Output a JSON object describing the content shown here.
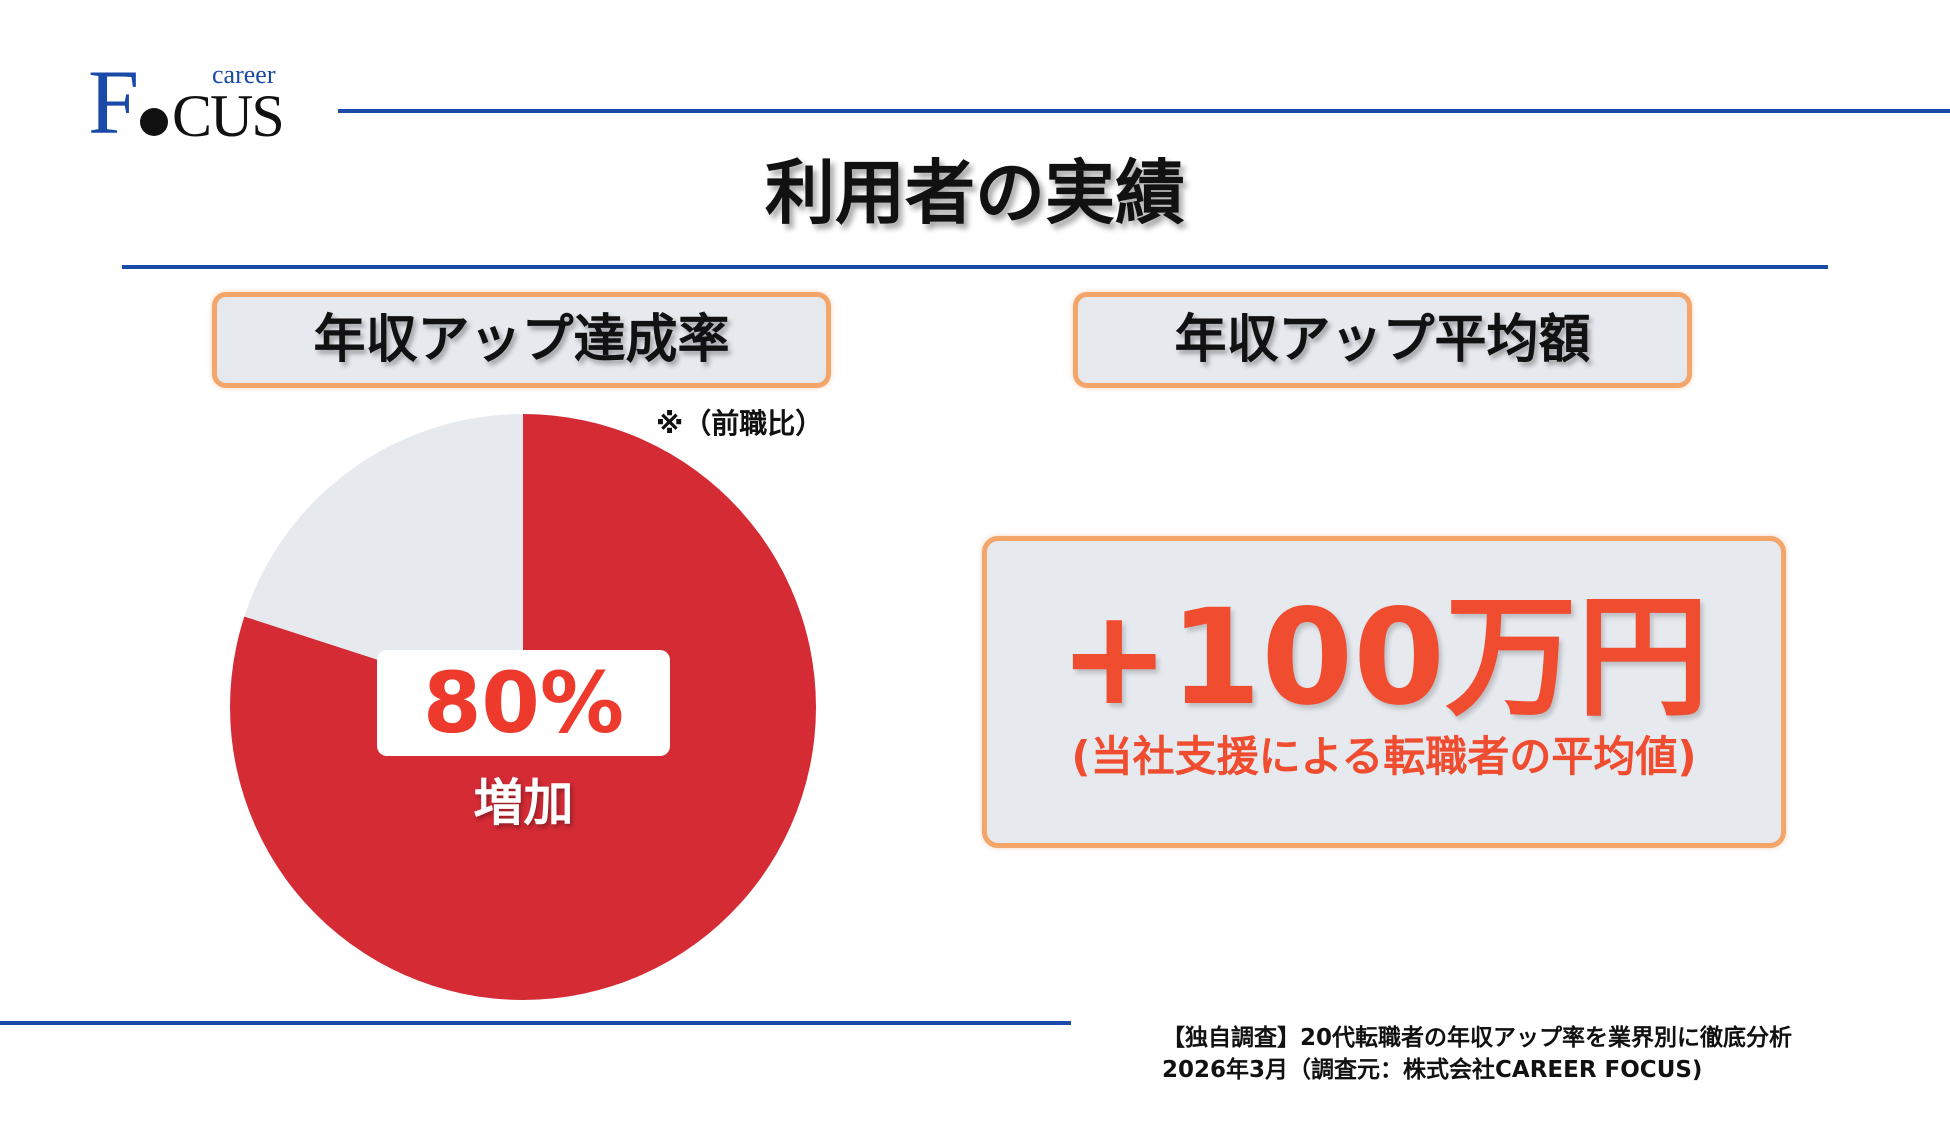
{
  "logo": {
    "f_letter": "F",
    "cus_letters": "CUS",
    "career_text": "career"
  },
  "title": "利用者の実績",
  "left_panel": {
    "header": "年収アップ達成率",
    "note": "※（前職比）",
    "percent_text": "80%",
    "percent_label": "増加"
  },
  "right_panel": {
    "header": "年収アップ平均額",
    "amount": "+100万円",
    "amount_note": "(当社支援による転職者の平均値)"
  },
  "source": {
    "line1": "【独自調査】20代転職者の年収アップ率を業界別に徹底分析",
    "line2": "2026年3月（調査元：株式会社CAREER FOCUS)"
  },
  "chart_data": {
    "type": "pie",
    "title": "年収アップ達成率",
    "slices": [
      {
        "label": "増加",
        "value": 80,
        "color": "#d42b35"
      },
      {
        "label": "",
        "value": 20,
        "color": "#e6e9ee"
      }
    ],
    "start_angle_deg": 0,
    "direction": "clockwise",
    "legend": "none"
  },
  "colors": {
    "brand_blue": "#1a4aa8",
    "pie_red": "#d42b35",
    "pie_gray": "#e6e9ee",
    "accent_orange": "#f4a56a",
    "value_red": "#ee3a2c"
  }
}
